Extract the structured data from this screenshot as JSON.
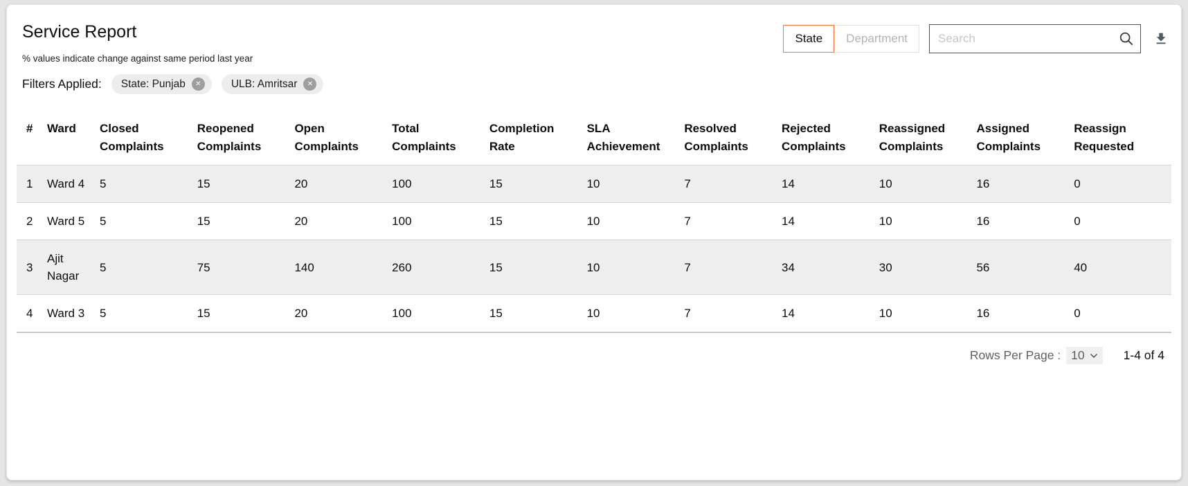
{
  "header": {
    "title": "Service Report",
    "subtitle": "% values indicate change against same period last year",
    "filters_label": "Filters Applied:",
    "filters": [
      {
        "label": "State: Punjab"
      },
      {
        "label": "ULB: Amritsar"
      }
    ],
    "toggle": {
      "state_label": "State",
      "department_label": "Department",
      "selected": "State"
    },
    "search": {
      "placeholder": "Search"
    },
    "accent_color": "#F47738"
  },
  "icons": {
    "search": "search-icon",
    "download": "download-icon",
    "chip_close": "close-icon",
    "select_caret": "chevron-down-icon",
    "close_glyph": "✕"
  },
  "table": {
    "columns": [
      "#",
      "Ward",
      "Closed Complaints",
      "Reopened Complaints",
      "Open Complaints",
      "Total Complaints",
      "Completion Rate",
      "SLA Achievement",
      "Resolved Complaints",
      "Rejected Complaints",
      "Reassigned Complaints",
      "Assigned Complaints",
      "Reassign Requested"
    ],
    "rows": [
      [
        "1",
        "Ward 4",
        "5",
        "15",
        "20",
        "100",
        "15",
        "10",
        "7",
        "14",
        "10",
        "16",
        "0"
      ],
      [
        "2",
        "Ward 5",
        "5",
        "15",
        "20",
        "100",
        "15",
        "10",
        "7",
        "14",
        "10",
        "16",
        "0"
      ],
      [
        "3",
        "Ajit Nagar",
        "5",
        "75",
        "140",
        "260",
        "15",
        "10",
        "7",
        "34",
        "30",
        "56",
        "40"
      ],
      [
        "4",
        "Ward 3",
        "5",
        "15",
        "20",
        "100",
        "15",
        "10",
        "7",
        "14",
        "10",
        "16",
        "0"
      ]
    ],
    "row_stripe_color": "#EEEEEE"
  },
  "footer": {
    "rows_per_page_label": "Rows Per Page :",
    "rows_per_page_value": "10",
    "range_text": "1-4 of 4"
  }
}
